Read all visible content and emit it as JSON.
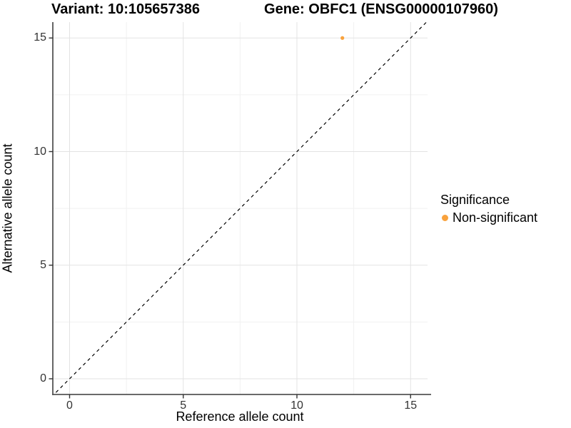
{
  "chart_data": {
    "type": "scatter",
    "title_left": "Variant: 10:105657386",
    "title_right": "Gene: OBFC1 (ENSG00000107960)",
    "xlabel": "Reference allele count",
    "ylabel": "Alternative allele count",
    "xlim": [
      -0.75,
      15.8
    ],
    "ylim": [
      -0.7,
      15.75
    ],
    "x_major_ticks": [
      0,
      5,
      10,
      15
    ],
    "y_major_ticks": [
      0,
      5,
      10,
      15
    ],
    "x_minor_ticks": [
      2.5,
      7.5,
      12.5
    ],
    "y_minor_ticks": [
      2.5,
      7.5,
      12.5
    ],
    "grid": "major+minor",
    "identity_line": {
      "equation": "y = x",
      "style": "dashed",
      "color": "#000000"
    },
    "points": [
      {
        "x": 12,
        "y": 15,
        "series": "Non-significant",
        "color": "#F9A23C"
      }
    ],
    "legend": {
      "title": "Significance",
      "position": "right",
      "items": [
        {
          "label": "Non-significant",
          "color": "#F9A23C"
        }
      ]
    },
    "colors": {
      "point": "#F9A23C",
      "grid_major": "#E3E3E3",
      "grid_minor": "#F1F1F1",
      "axis_line": "#555555",
      "tick_mark": "#333333",
      "tick_text": "#333333",
      "background": "#FFFFFF"
    }
  }
}
